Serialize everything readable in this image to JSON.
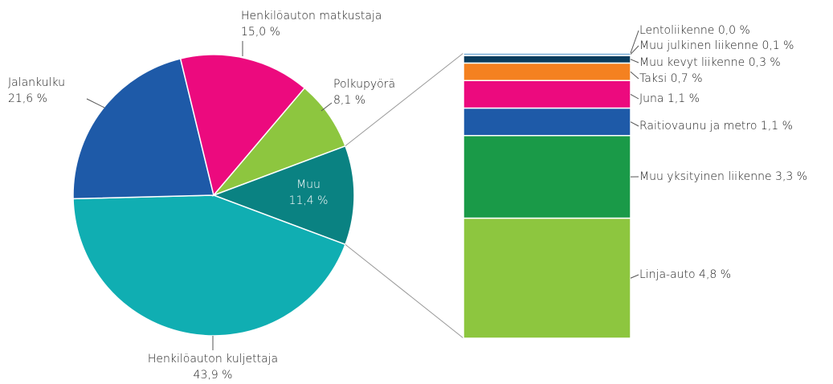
{
  "chart_data": [
    {
      "type": "pie",
      "categories": [
        "Muu",
        "Henkilöauton kuljettaja",
        "Jalankulku",
        "Henkilöauton matkustaja",
        "Polkupyörä"
      ],
      "values": [
        11.4,
        43.9,
        21.6,
        15.0,
        8.1
      ],
      "value_labels": [
        "11,4 %",
        "43,9 %",
        "21,6 %",
        "15,0 %",
        "8,1 %"
      ],
      "colors": [
        "#0a8282",
        "#10aeb2",
        "#1e5aa8",
        "#ec0a7e",
        "#8dc63f"
      ]
    },
    {
      "type": "stacked-bar",
      "categories": [
        "Linja-auto",
        "Muu yksityinen liikenne",
        "Raitiovaunu ja metro",
        "Juna",
        "Taksi",
        "Muu kevyt liikenne",
        "Muu julkinen liikenne",
        "Lentoliikenne"
      ],
      "values": [
        4.8,
        3.3,
        1.1,
        1.1,
        0.7,
        0.3,
        0.1,
        0.0
      ],
      "value_labels": [
        "4,8 %",
        "3,3 %",
        "1,1 %",
        "1,1 %",
        "0,7 %",
        "0,3 %",
        "0,1 %",
        "0,0 %"
      ],
      "colors": [
        "#8dc63f",
        "#1a9a48",
        "#1e5aa8",
        "#ec0a7e",
        "#f48120",
        "#0b3d5e",
        "#7fb2d9",
        "#b0b0b0"
      ]
    }
  ]
}
